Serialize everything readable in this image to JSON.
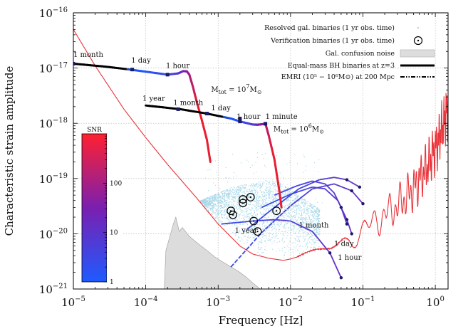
{
  "chart_data": {
    "type": "line",
    "title": "",
    "xlabel": "Frequency [Hz]",
    "ylabel": "Characteristic strain amplitude",
    "xscale": "log",
    "yscale": "log",
    "xlim": [
      1e-05,
      1.5
    ],
    "ylim": [
      1e-21,
      1e-16
    ],
    "grid": true,
    "legend_position": "top-right",
    "x_tick_labels": [
      {
        "value": 1e-05,
        "base": "10",
        "exp": "−5"
      },
      {
        "value": 0.0001,
        "base": "10",
        "exp": "−4"
      },
      {
        "value": 0.001,
        "base": "10",
        "exp": "−3"
      },
      {
        "value": 0.01,
        "base": "10",
        "exp": "−2"
      },
      {
        "value": 0.1,
        "base": "10",
        "exp": "−1"
      },
      {
        "value": 1,
        "base": "10",
        "exp": "0"
      }
    ],
    "y_tick_labels": [
      {
        "value": 1e-21,
        "base": "10",
        "exp": "−21"
      },
      {
        "value": 1e-20,
        "base": "10",
        "exp": "−20"
      },
      {
        "value": 1e-19,
        "base": "10",
        "exp": "−19"
      },
      {
        "value": 1e-18,
        "base": "10",
        "exp": "−18"
      },
      {
        "value": 1e-17,
        "base": "10",
        "exp": "−17"
      },
      {
        "value": 1e-16,
        "base": "10",
        "exp": "−16"
      }
    ],
    "legend": [
      {
        "label": "Resolved gal. binaries (1 yr obs. time)",
        "marker": "small-dots",
        "color": "#a8d8e8"
      },
      {
        "label": "Verification binaries (1 yr obs. time)",
        "marker": "circle-dot",
        "color": "#000000"
      },
      {
        "label": "Gal. confusion noise",
        "marker": "filled-box",
        "color": "#dddddd"
      },
      {
        "label": "Equal-mass BH binaries at z=3",
        "marker": "thick-line",
        "color": "#000000"
      },
      {
        "label": "EMRI (10⁵ − 10⁶M⊙) at 200 Mpc",
        "marker": "dash-dot-dot",
        "color": "#000000"
      }
    ],
    "colorbar": {
      "title": "SNR",
      "ticks": [
        {
          "value": 1,
          "label": "1"
        },
        {
          "value": 10,
          "label": "10"
        },
        {
          "value": 100,
          "label": "100"
        }
      ],
      "range": [
        1,
        1000
      ],
      "colors": [
        "#1e5bff",
        "#7a1fb0",
        "#ff2030"
      ]
    },
    "series": [
      {
        "name": "LISA sensitivity curve",
        "color": "#e8343a",
        "points": [
          [
            1e-05,
            5e-17
          ],
          [
            2e-05,
            1.1e-17
          ],
          [
            5e-05,
            1.8e-18
          ],
          [
            0.0001,
            5.5e-19
          ],
          [
            0.0002,
            1.8e-19
          ],
          [
            0.0005,
            4.5e-20
          ],
          [
            0.001,
            1.5e-20
          ],
          [
            0.002,
            6e-21
          ],
          [
            0.003,
            4.3e-21
          ],
          [
            0.005,
            3.6e-21
          ],
          [
            0.008,
            3.3e-21
          ],
          [
            0.01,
            3.5e-21
          ],
          [
            0.02,
            4.6e-21
          ],
          [
            0.05,
            6.5e-21
          ],
          [
            0.1,
            1.15e-20
          ],
          [
            0.2,
            2.2e-20
          ],
          [
            0.3,
            3.2e-20
          ],
          [
            0.5,
            6.5e-20
          ],
          [
            0.8,
            1.8e-19
          ],
          [
            1,
            3.5e-19
          ],
          [
            1.2,
            7e-19
          ],
          [
            1.5,
            1.8e-18
          ]
        ]
      },
      {
        "name": "Equal-mass BH binary, Mtot = 10^7 Msun",
        "points": [
          [
            1e-05,
            1.2e-17
          ],
          [
            3e-05,
            1.05e-17
          ],
          [
            6e-05,
            9.4e-18
          ],
          [
            0.0001,
            8.6e-18
          ],
          [
            0.0002,
            7.6e-18
          ],
          [
            0.00028,
            8e-18
          ],
          [
            0.00033,
            8.8e-18
          ],
          [
            0.00037,
            8.7e-18
          ],
          [
            0.0004,
            7.6e-18
          ],
          [
            0.00045,
            4.5e-18
          ],
          [
            0.0005,
            2.6e-18
          ],
          [
            0.0006,
            1.1e-18
          ],
          [
            0.0007,
            5e-19
          ],
          [
            0.00078,
            2e-19
          ]
        ],
        "markers": [
          [
            1e-05,
            1.2e-17
          ],
          [
            6.5e-05,
            9.4e-18
          ],
          [
            0.0002,
            7.6e-18
          ]
        ],
        "time_labels": [
          {
            "text": "1 month",
            "at": [
              1e-05,
              1.6e-17
            ]
          },
          {
            "text": "1 day",
            "at": [
              6.3e-05,
              1.25e-17
            ]
          },
          {
            "text": "1 hour",
            "at": [
              0.00019,
              1e-17
            ]
          }
        ],
        "mass_label": {
          "base": "M",
          "sub": "tot",
          "mid": " = 10",
          "exp": "7",
          "tail": "M",
          "tail_sub": "⊙",
          "at": [
            0.0008,
            3.7e-18
          ]
        }
      },
      {
        "name": "Equal-mass BH binary, Mtot = 10^6 Msun",
        "points": [
          [
            0.0001,
            2.1e-18
          ],
          [
            0.0003,
            1.8e-18
          ],
          [
            0.0007,
            1.5e-18
          ],
          [
            0.0015,
            1.22e-18
          ],
          [
            0.002,
            1.08e-18
          ],
          [
            0.003,
            9.5e-19
          ],
          [
            0.0035,
            9.4e-19
          ],
          [
            0.004,
            9.6e-19
          ],
          [
            0.0045,
            9.8e-19
          ],
          [
            0.005,
            6e-19
          ],
          [
            0.006,
            2.2e-19
          ],
          [
            0.007,
            6e-20
          ],
          [
            0.0075,
            3e-20
          ]
        ],
        "markers": [
          [
            0.00028,
            1.8e-18
          ],
          [
            0.0007,
            1.5e-18
          ],
          [
            0.002,
            1.22e-18
          ],
          [
            0.002,
            1.08e-18
          ],
          [
            0.0045,
            9.8e-19
          ]
        ],
        "time_labels": [
          {
            "text": "1 year",
            "at": [
              9e-05,
              2.55e-18
            ]
          },
          {
            "text": "1 month",
            "at": [
              0.00024,
              2.15e-18
            ]
          },
          {
            "text": "1 day",
            "at": [
              0.0008,
              1.72e-18
            ]
          },
          {
            "text": "1 hour",
            "at": [
              0.0018,
              1.2e-18
            ]
          },
          {
            "text": "1 minute",
            "at": [
              0.0045,
              1.2e-18
            ]
          }
        ],
        "mass_label": {
          "base": "M",
          "sub": "tot",
          "mid": " = 10",
          "exp": "6",
          "tail": "M",
          "tail_sub": "⊙",
          "at": [
            0.0058,
            7.2e-19
          ]
        }
      },
      {
        "name": "EMRI tracks",
        "linestyle": "dash-dot-dot",
        "tracks": [
          [
            [
              0.0011,
              1.5e-20
            ],
            [
              0.003,
              1.7e-20
            ],
            [
              0.006,
              1.8e-20
            ],
            [
              0.01,
              1.7e-20
            ],
            [
              0.02,
              1.1e-20
            ],
            [
              0.035,
              4.5e-21
            ],
            [
              0.05,
              1.6e-21
            ]
          ],
          [
            [
              0.0015,
              2.5e-21
            ],
            [
              0.004,
              1.05e-20
            ],
            [
              0.01,
              3.2e-20
            ],
            [
              0.02,
              6.5e-20
            ],
            [
              0.04,
              8e-20
            ],
            [
              0.07,
              6e-20
            ],
            [
              0.1,
              3.5e-20
            ]
          ],
          [
            [
              0.0025,
              1.2e-20
            ],
            [
              0.006,
              3e-20
            ],
            [
              0.013,
              6.5e-20
            ],
            [
              0.025,
              9.5e-20
            ],
            [
              0.04,
              1.05e-19
            ],
            [
              0.06,
              9.5e-20
            ],
            [
              0.09,
              7e-20
            ]
          ],
          [
            [
              0.004,
              3e-20
            ],
            [
              0.01,
              5.2e-20
            ],
            [
              0.02,
              7e-20
            ],
            [
              0.03,
              6.5e-20
            ],
            [
              0.045,
              4e-20
            ],
            [
              0.06,
              1.8e-20
            ],
            [
              0.07,
              1e-20
            ]
          ],
          [
            [
              0.006,
              5e-20
            ],
            [
              0.012,
              7.3e-20
            ],
            [
              0.02,
              9e-20
            ],
            [
              0.03,
              8e-20
            ],
            [
              0.04,
              5.5e-20
            ],
            [
              0.05,
              3e-20
            ],
            [
              0.06,
              1.5e-20
            ]
          ]
        ],
        "time_labels": [
          {
            "text": "1 year",
            "at": [
              0.0017,
              1.04e-20
            ]
          },
          {
            "text": "1 month",
            "at": [
              0.013,
              1.3e-20
            ]
          },
          {
            "text": "1 day",
            "at": [
              0.04,
              6e-21
            ]
          },
          {
            "text": "1 hour",
            "at": [
              0.045,
              3.4e-21
            ]
          }
        ]
      }
    ],
    "verification_binaries": [
      [
        0.0015,
        2.6e-20
      ],
      [
        0.0016,
        2.2e-20
      ],
      [
        0.0022,
        3.6e-20
      ],
      [
        0.0022,
        4.2e-20
      ],
      [
        0.0028,
        4.6e-20
      ],
      [
        0.0031,
        1.7e-20
      ],
      [
        0.0035,
        1.1e-20
      ],
      [
        0.0064,
        2.6e-20
      ]
    ]
  }
}
